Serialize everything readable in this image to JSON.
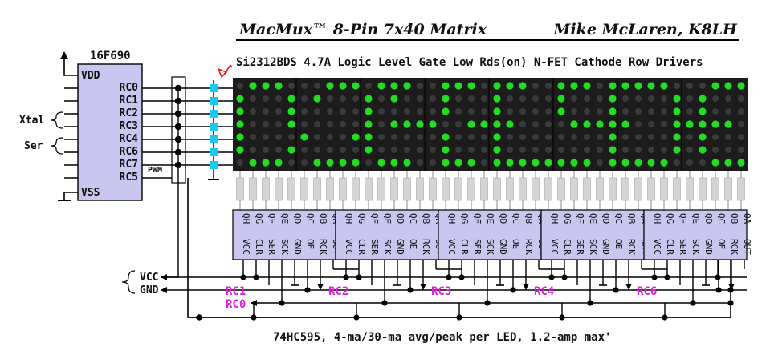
{
  "header": {
    "title": "MacMux™ 8-Pin 7x40 Matrix",
    "author": "Mike McLaren, K8LH"
  },
  "subtitle": "Si2312BDS 4.7A Logic Level Gate Low Rds(on) N-FET Cathode Row Drivers",
  "footer": "74HC595, 4-ma/30-ma avg/peak per LED, 1.2-amp max'",
  "mcu": {
    "name": "16F690",
    "pins": [
      "VDD",
      "RC0",
      "RC1",
      "RC2",
      "RC3",
      "RC4",
      "RC6",
      "RC7",
      "RC5",
      "VSS"
    ],
    "pwm_label": "PWM"
  },
  "brace_labels": [
    "Xtal",
    "Ser"
  ],
  "power_labels": [
    "VCC",
    "GND"
  ],
  "bus_labels": {
    "rc0": "RC0",
    "rc1": "RC1",
    "rc2": "RC2",
    "rc3": "RC3",
    "rc4": "RC4",
    "rc6": "RC6"
  },
  "shift_register": {
    "top_pins": [
      "QH",
      "QG",
      "QF",
      "QE",
      "QD",
      "QC",
      "QB",
      "QA"
    ],
    "bottom_pins": [
      "VCC",
      "CLR",
      "SER",
      "SCK",
      "GND",
      "OE",
      "RCK",
      "OUT"
    ],
    "count": 5
  },
  "matrix": {
    "rows": 7,
    "cols": 40,
    "on_color": "#22dd22",
    "off_color": "#3a3a3a",
    "bg_color": "#1c1c1c",
    "pattern": [
      "0111000111011100111011100111011111000111",
      "1000101000101000100010000100010000101000",
      "1000100000100000100010000100010000101000",
      "1000100000101111001111000011111000111110",
      "1000010001100000100010000000010000101000",
      "1000100000100000100010000000010000101000",
      "0111001111011100111011111111011111000111"
    ]
  },
  "colors": {
    "chip_fill": "#c9c7ef",
    "fet_color": "#1ec8f0",
    "label_color": "#e01ee0"
  }
}
